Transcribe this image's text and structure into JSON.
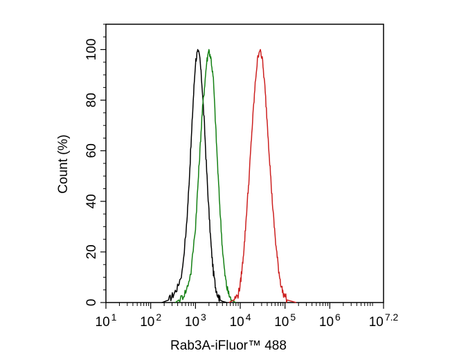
{
  "chart_data": {
    "type": "line",
    "title": "",
    "xlabel": "Rab3A-iFluor™ 488",
    "ylabel": "Count  (%)",
    "x_scale": "log",
    "xlim": [
      1,
      7.2
    ],
    "ylim": [
      0,
      110
    ],
    "grid": false,
    "legend": "none",
    "x_ticks": [
      {
        "base": "10",
        "exp": "1",
        "value": 1
      },
      {
        "base": "10",
        "exp": "2",
        "value": 2
      },
      {
        "base": "10",
        "exp": "3",
        "value": 3
      },
      {
        "base": "10",
        "exp": "4",
        "value": 4
      },
      {
        "base": "10",
        "exp": "5",
        "value": 5
      },
      {
        "base": "10",
        "exp": "6",
        "value": 6
      },
      {
        "base": "10",
        "exp": "7.2",
        "value": 7.2
      }
    ],
    "y_ticks": [
      "0",
      "20",
      "40",
      "60",
      "80",
      "100"
    ],
    "series": [
      {
        "color": "#000000",
        "x": [
          2.25,
          2.4,
          2.5,
          2.6,
          2.7,
          2.8,
          2.85,
          2.9,
          2.95,
          3.0,
          3.05,
          3.1,
          3.15,
          3.2,
          3.25,
          3.3,
          3.35,
          3.4,
          3.45,
          3.5,
          3.55,
          3.6,
          3.7
        ],
        "values": [
          0,
          1,
          3,
          6,
          12,
          30,
          45,
          62,
          80,
          95,
          100,
          96,
          85,
          70,
          52,
          36,
          22,
          12,
          6,
          3,
          1,
          0.5,
          0
        ]
      },
      {
        "color": "#138013",
        "x": [
          2.55,
          2.7,
          2.8,
          2.9,
          3.0,
          3.05,
          3.1,
          3.15,
          3.2,
          3.25,
          3.3,
          3.35,
          3.4,
          3.45,
          3.5,
          3.55,
          3.6,
          3.65,
          3.7,
          3.75,
          3.8,
          3.9
        ],
        "values": [
          0,
          2,
          5,
          12,
          30,
          45,
          60,
          75,
          85,
          95,
          100,
          96,
          88,
          70,
          52,
          36,
          22,
          12,
          6,
          3,
          1,
          0
        ]
      },
      {
        "color": "#cc1f1f",
        "x": [
          3.75,
          3.85,
          3.95,
          4.0,
          4.05,
          4.1,
          4.15,
          4.2,
          4.25,
          4.3,
          4.35,
          4.4,
          4.45,
          4.5,
          4.55,
          4.6,
          4.65,
          4.7,
          4.75,
          4.8,
          4.85,
          4.9,
          4.95,
          5.05,
          5.15,
          5.25
        ],
        "values": [
          0,
          1,
          3,
          7,
          15,
          25,
          38,
          50,
          65,
          78,
          90,
          98,
          100,
          95,
          85,
          72,
          58,
          44,
          32,
          22,
          14,
          8,
          4,
          1,
          0.5,
          0
        ]
      }
    ]
  }
}
